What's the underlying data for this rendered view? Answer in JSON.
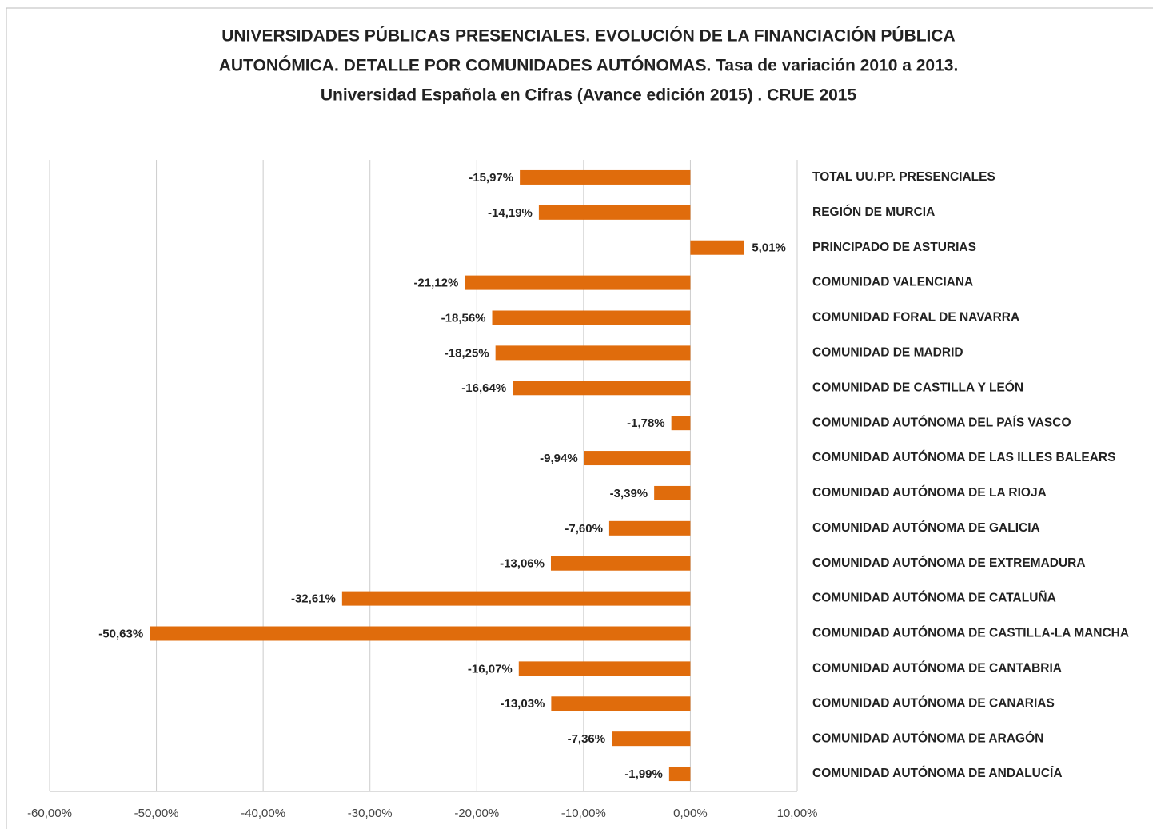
{
  "chart_data": {
    "type": "bar",
    "orientation": "horizontal",
    "title": [
      "UNIVERSIDADES PÚBLICAS PRESENCIALES. EVOLUCIÓN DE LA FINANCIACIÓN PÚBLICA",
      "AUTONÓMICA. DETALLE POR COMUNIDADES AUTÓNOMAS.  Tasa de variación 2010 a 2013.",
      "Universidad Española en Cifras  (Avance edición 2015) . CRUE 2015"
    ],
    "categories": [
      "TOTAL UU.PP. PRESENCIALES",
      "REGIÓN DE MURCIA",
      "PRINCIPADO DE ASTURIAS",
      "COMUNIDAD VALENCIANA",
      "COMUNIDAD FORAL DE NAVARRA",
      "COMUNIDAD DE MADRID",
      "COMUNIDAD DE CASTILLA Y LEÓN",
      "COMUNIDAD AUTÓNOMA DEL PAÍS VASCO",
      "COMUNIDAD AUTÓNOMA DE LAS ILLES BALEARS",
      "COMUNIDAD AUTÓNOMA DE LA RIOJA",
      "COMUNIDAD AUTÓNOMA DE GALICIA",
      "COMUNIDAD AUTÓNOMA DE EXTREMADURA",
      "COMUNIDAD AUTÓNOMA DE CATALUÑA",
      "COMUNIDAD AUTÓNOMA DE CASTILLA-LA MANCHA",
      "COMUNIDAD AUTÓNOMA DE CANTABRIA",
      "COMUNIDAD AUTÓNOMA DE CANARIAS",
      "COMUNIDAD AUTÓNOMA DE ARAGÓN",
      "COMUNIDAD AUTÓNOMA DE ANDALUCÍA"
    ],
    "values": [
      -15.97,
      -14.19,
      5.01,
      -21.12,
      -18.56,
      -18.25,
      -16.64,
      -1.78,
      -9.94,
      -3.39,
      -7.6,
      -13.06,
      -32.61,
      -50.63,
      -16.07,
      -13.03,
      -7.36,
      -1.99
    ],
    "value_labels": [
      "-15,97%",
      "-14,19%",
      "5,01%",
      "-21,12%",
      "-18,56%",
      "-18,25%",
      "-16,64%",
      "-1,78%",
      "-9,94%",
      "-3,39%",
      "-7,60%",
      "-13,06%",
      "-32,61%",
      "-50,63%",
      "-16,07%",
      "-13,03%",
      "-7,36%",
      "-1,99%"
    ],
    "color": "#e06c0c",
    "xlim": [
      -60,
      10
    ],
    "xticks": [
      {
        "value": -60,
        "label": "-60,00%"
      },
      {
        "value": -50,
        "label": "-50,00%"
      },
      {
        "value": -40,
        "label": "-40,00%"
      },
      {
        "value": -30,
        "label": "-30,00%"
      },
      {
        "value": -20,
        "label": "-20,00%"
      },
      {
        "value": -10,
        "label": "-10,00%"
      },
      {
        "value": 0,
        "label": "0,00%"
      },
      {
        "value": 10,
        "label": "10,00%"
      }
    ],
    "grid": true
  }
}
